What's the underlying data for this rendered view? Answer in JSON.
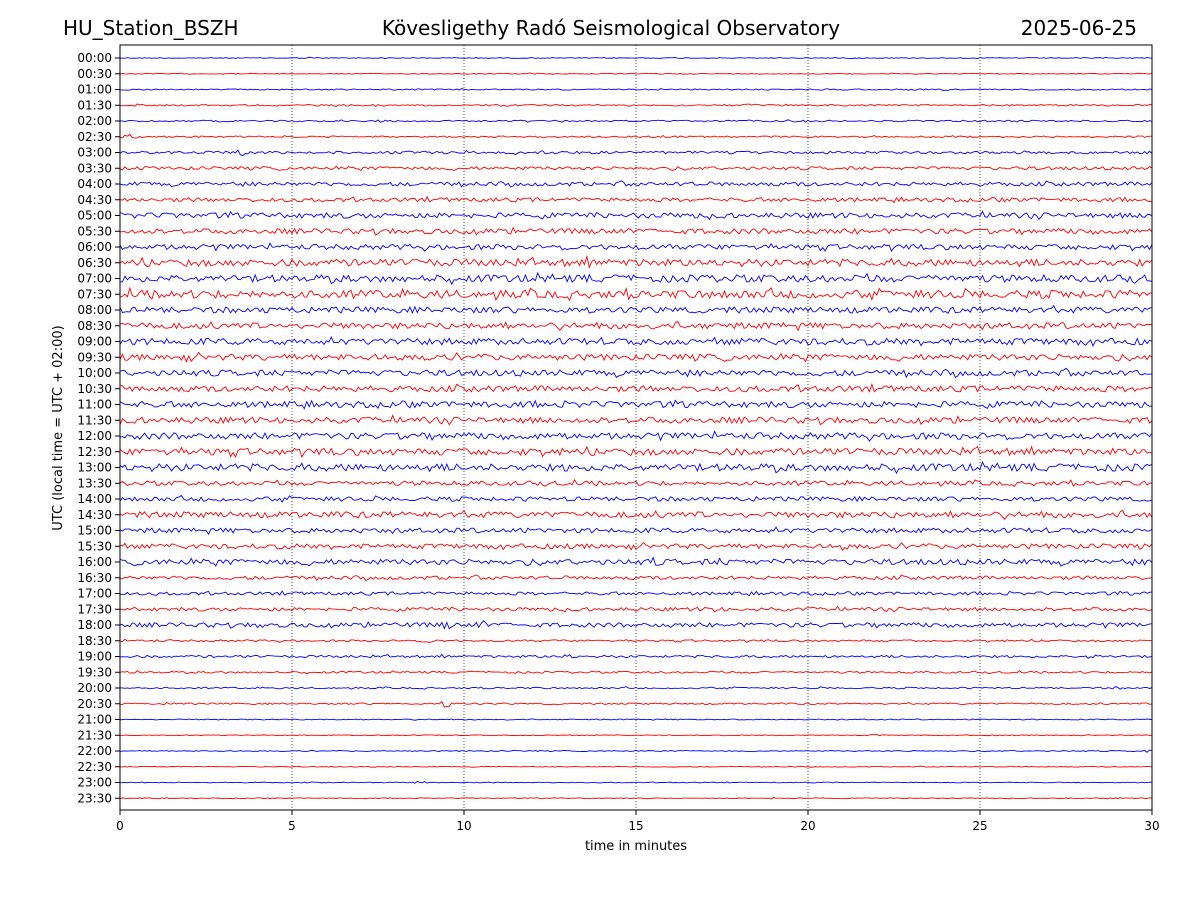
{
  "header": {
    "station": "HU_Station_BSZH",
    "observatory": "Kövesligethy Radó Seismological Observatory",
    "date": "2025-06-25"
  },
  "chart_data": {
    "type": "line",
    "title": "Kövesligethy Radó Seismological Observatory",
    "xlabel": "time in minutes",
    "ylabel": "UTC (local time = UTC + 02:00)",
    "xlim": [
      0,
      30
    ],
    "x_ticks": [
      "0",
      "5",
      "10",
      "15",
      "20",
      "25",
      "30"
    ],
    "x_tick_values": [
      0,
      5,
      10,
      15,
      20,
      25,
      30
    ],
    "grid": "vertical dotted",
    "colors": {
      "even_row": "#0000ff",
      "odd_row": "#ff0000"
    },
    "rows": [
      {
        "label": "00:00",
        "amp": 0.4,
        "bursts": [
          [
            5.5,
            1
          ]
        ]
      },
      {
        "label": "00:30",
        "amp": 0.4,
        "bursts": [
          [
            12,
            1.5
          ]
        ]
      },
      {
        "label": "01:00",
        "amp": 0.6,
        "bursts": [
          [
            10,
            1
          ],
          [
            24,
            1.5
          ]
        ]
      },
      {
        "label": "01:30",
        "amp": 0.8,
        "bursts": [
          [
            0.5,
            1.5
          ],
          [
            18.3,
            1.5
          ]
        ]
      },
      {
        "label": "02:00",
        "amp": 0.8,
        "bursts": [
          [
            7.5,
            2
          ]
        ]
      },
      {
        "label": "02:30",
        "amp": 0.8,
        "bursts": [
          [
            0.3,
            2.5
          ]
        ]
      },
      {
        "label": "03:00",
        "amp": 1.3,
        "bursts": [
          [
            3.6,
            4
          ],
          [
            6.5,
            1.5
          ]
        ]
      },
      {
        "label": "03:30",
        "amp": 1.6,
        "bursts": [
          [
            1.5,
            1.5
          ]
        ]
      },
      {
        "label": "04:00",
        "amp": 2.0,
        "bursts": [
          [
            26,
            2.5
          ]
        ]
      },
      {
        "label": "04:30",
        "amp": 2.0,
        "bursts": [
          [
            5.3,
            2
          ]
        ]
      },
      {
        "label": "05:00",
        "amp": 2.6,
        "bursts": [
          [
            1.8,
            2
          ],
          [
            23.5,
            2
          ],
          [
            26.5,
            2.5
          ]
        ]
      },
      {
        "label": "05:30",
        "amp": 2.6,
        "bursts": [
          [
            21.5,
            3.5
          ],
          [
            18.5,
            2
          ],
          [
            15,
            1.5
          ]
        ]
      },
      {
        "label": "06:00",
        "amp": 2.6,
        "bursts": [
          [
            13.5,
            1.5
          ]
        ]
      },
      {
        "label": "06:30",
        "amp": 3.5,
        "bursts": [
          [
            8.7,
            6
          ],
          [
            13.7,
            6
          ],
          [
            15.2,
            4.5
          ],
          [
            20,
            3
          ]
        ]
      },
      {
        "label": "07:00",
        "amp": 3.6,
        "bursts": [
          [
            8.5,
            3
          ],
          [
            27.5,
            2.5
          ]
        ]
      },
      {
        "label": "07:30",
        "amp": 4.0,
        "bursts": [
          [
            1,
            2.5
          ],
          [
            10.5,
            2.5
          ],
          [
            12,
            2
          ]
        ]
      },
      {
        "label": "08:00",
        "amp": 3.0,
        "bursts": [
          [
            9.5,
            2
          ]
        ]
      },
      {
        "label": "08:30",
        "amp": 3.0,
        "bursts": [
          [
            20,
            2.5
          ]
        ]
      },
      {
        "label": "09:00",
        "amp": 3.2,
        "bursts": [
          [
            5.5,
            2.5
          ],
          [
            0.5,
            2
          ]
        ]
      },
      {
        "label": "09:30",
        "amp": 3.0,
        "bursts": [
          [
            19.5,
            3.5
          ]
        ]
      },
      {
        "label": "10:00",
        "amp": 3.0,
        "bursts": [
          [
            23,
            2.5
          ]
        ]
      },
      {
        "label": "10:30",
        "amp": 3.0,
        "bursts": [
          [
            0.5,
            2.5
          ],
          [
            24,
            2
          ]
        ]
      },
      {
        "label": "11:00",
        "amp": 3.0,
        "bursts": [
          [
            4,
            2.5
          ],
          [
            26,
            2
          ]
        ]
      },
      {
        "label": "11:30",
        "amp": 3.0,
        "bursts": [
          [
            28,
            2
          ]
        ]
      },
      {
        "label": "12:00",
        "amp": 3.2,
        "bursts": [
          [
            4.5,
            2
          ],
          [
            30,
            2.5
          ]
        ]
      },
      {
        "label": "12:30",
        "amp": 3.4,
        "bursts": [
          [
            6,
            2.5
          ],
          [
            30,
            2
          ]
        ]
      },
      {
        "label": "13:00",
        "amp": 3.6,
        "bursts": [
          [
            14,
            4
          ],
          [
            16.5,
            5
          ],
          [
            18,
            4.5
          ],
          [
            0.5,
            2
          ]
        ]
      },
      {
        "label": "13:30",
        "amp": 2.2,
        "bursts": [
          [
            23.3,
            3
          ]
        ]
      },
      {
        "label": "14:00",
        "amp": 2.2,
        "bursts": [
          [
            18.5,
            2.5
          ]
        ]
      },
      {
        "label": "14:30",
        "amp": 3.0,
        "bursts": [
          [
            8.5,
            3
          ],
          [
            11,
            2.5
          ]
        ]
      },
      {
        "label": "15:00",
        "amp": 2.4,
        "bursts": [
          [
            7,
            3
          ],
          [
            5,
            2.5
          ],
          [
            20,
            2.5
          ]
        ]
      },
      {
        "label": "15:30",
        "amp": 2.4,
        "bursts": [
          [
            21,
            4.5
          ],
          [
            26.5,
            2.5
          ]
        ]
      },
      {
        "label": "16:00",
        "amp": 2.8,
        "bursts": [
          [
            15.5,
            5
          ],
          [
            17.5,
            5
          ],
          [
            5,
            2.5
          ]
        ]
      },
      {
        "label": "16:30",
        "amp": 1.8,
        "bursts": [
          [
            23.5,
            2.5
          ]
        ]
      },
      {
        "label": "17:00",
        "amp": 1.6,
        "bursts": [
          [
            5,
            2
          ]
        ]
      },
      {
        "label": "17:30",
        "amp": 1.8,
        "bursts": [
          [
            17.3,
            4.5
          ],
          [
            24.5,
            2
          ]
        ]
      },
      {
        "label": "18:00",
        "amp": 2.2,
        "bursts": [
          [
            4,
            4
          ],
          [
            7.5,
            4
          ],
          [
            9.5,
            5
          ],
          [
            10.5,
            5
          ],
          [
            16,
            2.5
          ],
          [
            18.5,
            2.5
          ]
        ]
      },
      {
        "label": "18:30",
        "amp": 1.0,
        "bursts": [
          [
            9,
            2.5
          ],
          [
            1,
            1.5
          ]
        ]
      },
      {
        "label": "19:00",
        "amp": 1.2,
        "bursts": [
          [
            13,
            3
          ],
          [
            28.3,
            3.5
          ],
          [
            9.5,
            2
          ]
        ]
      },
      {
        "label": "19:30",
        "amp": 1.0,
        "bursts": [
          [
            0.5,
            2
          ],
          [
            3,
            1.5
          ]
        ]
      },
      {
        "label": "20:00",
        "amp": 0.8,
        "bursts": [
          [
            25.5,
            1.5
          ],
          [
            29,
            1.5
          ]
        ]
      },
      {
        "label": "20:30",
        "amp": 0.8,
        "bursts": [
          [
            9.5,
            4
          ],
          [
            1.5,
            2
          ]
        ]
      },
      {
        "label": "21:00",
        "amp": 0.5,
        "bursts": []
      },
      {
        "label": "21:30",
        "amp": 0.4,
        "bursts": [
          [
            22,
            1
          ]
        ]
      },
      {
        "label": "22:00",
        "amp": 0.5,
        "bursts": [
          [
            29.7,
            2
          ]
        ]
      },
      {
        "label": "22:30",
        "amp": 0.4,
        "bursts": []
      },
      {
        "label": "23:00",
        "amp": 0.4,
        "bursts": [
          [
            8.7,
            2
          ]
        ]
      },
      {
        "label": "23:30",
        "amp": 0.4,
        "bursts": [
          [
            19,
            1
          ]
        ]
      }
    ]
  }
}
